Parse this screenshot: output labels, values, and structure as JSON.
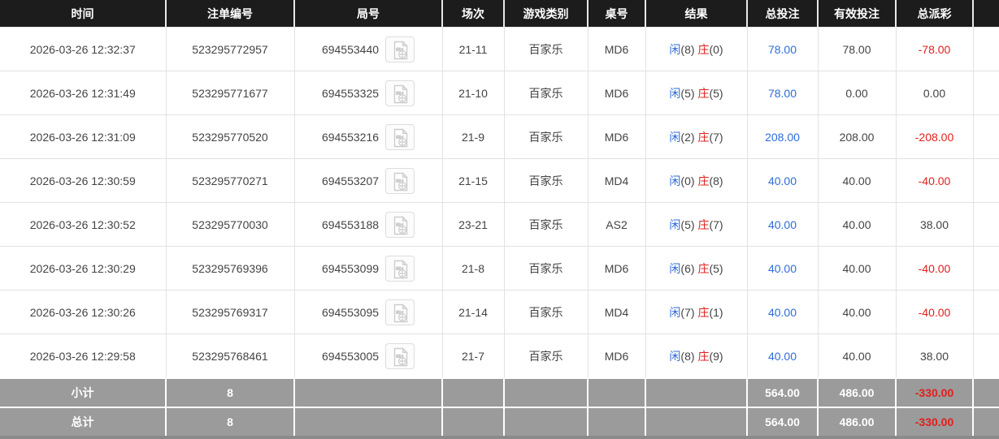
{
  "header": {
    "columns": [
      "时间",
      "注单编号",
      "局号",
      "场次",
      "游戏类别",
      "桌号",
      "结果",
      "总投注",
      "有效投注",
      "总派彩"
    ]
  },
  "icons": {
    "video_replay": "film-document-icon"
  },
  "rows": [
    {
      "time": "2026-03-26 12:32:37",
      "bet_id": "523295772957",
      "round_id": "694553440",
      "session": "21-11",
      "game_type": "百家乐",
      "table_no": "MD6",
      "result": {
        "player_label": "闲",
        "player_pts": "(8)",
        "banker_label": "庄",
        "banker_pts": "(0)"
      },
      "total_bet": "78.00",
      "valid_bet": "78.00",
      "payout": "-78.00"
    },
    {
      "time": "2026-03-26 12:31:49",
      "bet_id": "523295771677",
      "round_id": "694553325",
      "session": "21-10",
      "game_type": "百家乐",
      "table_no": "MD6",
      "result": {
        "player_label": "闲",
        "player_pts": "(5)",
        "banker_label": "庄",
        "banker_pts": "(5)"
      },
      "total_bet": "78.00",
      "valid_bet": "0.00",
      "payout": "0.00"
    },
    {
      "time": "2026-03-26 12:31:09",
      "bet_id": "523295770520",
      "round_id": "694553216",
      "session": "21-9",
      "game_type": "百家乐",
      "table_no": "MD6",
      "result": {
        "player_label": "闲",
        "player_pts": "(2)",
        "banker_label": "庄",
        "banker_pts": "(7)"
      },
      "total_bet": "208.00",
      "valid_bet": "208.00",
      "payout": "-208.00"
    },
    {
      "time": "2026-03-26 12:30:59",
      "bet_id": "523295770271",
      "round_id": "694553207",
      "session": "21-15",
      "game_type": "百家乐",
      "table_no": "MD4",
      "result": {
        "player_label": "闲",
        "player_pts": "(0)",
        "banker_label": "庄",
        "banker_pts": "(8)"
      },
      "total_bet": "40.00",
      "valid_bet": "40.00",
      "payout": "-40.00"
    },
    {
      "time": "2026-03-26 12:30:52",
      "bet_id": "523295770030",
      "round_id": "694553188",
      "session": "23-21",
      "game_type": "百家乐",
      "table_no": "AS2",
      "result": {
        "player_label": "闲",
        "player_pts": "(5)",
        "banker_label": "庄",
        "banker_pts": "(7)"
      },
      "total_bet": "40.00",
      "valid_bet": "40.00",
      "payout": "38.00"
    },
    {
      "time": "2026-03-26 12:30:29",
      "bet_id": "523295769396",
      "round_id": "694553099",
      "session": "21-8",
      "game_type": "百家乐",
      "table_no": "MD6",
      "result": {
        "player_label": "闲",
        "player_pts": "(6)",
        "banker_label": "庄",
        "banker_pts": "(5)"
      },
      "total_bet": "40.00",
      "valid_bet": "40.00",
      "payout": "-40.00"
    },
    {
      "time": "2026-03-26 12:30:26",
      "bet_id": "523295769317",
      "round_id": "694553095",
      "session": "21-14",
      "game_type": "百家乐",
      "table_no": "MD4",
      "result": {
        "player_label": "闲",
        "player_pts": "(7)",
        "banker_label": "庄",
        "banker_pts": "(1)"
      },
      "total_bet": "40.00",
      "valid_bet": "40.00",
      "payout": "-40.00"
    },
    {
      "time": "2026-03-26 12:29:58",
      "bet_id": "523295768461",
      "round_id": "694553005",
      "session": "21-7",
      "game_type": "百家乐",
      "table_no": "MD6",
      "result": {
        "player_label": "闲",
        "player_pts": "(8)",
        "banker_label": "庄",
        "banker_pts": "(9)"
      },
      "total_bet": "40.00",
      "valid_bet": "40.00",
      "payout": "38.00"
    }
  ],
  "footer": {
    "subtotal": {
      "label": "小计",
      "count": "8",
      "total_bet": "564.00",
      "valid_bet": "486.00",
      "payout": "-330.00"
    },
    "total": {
      "label": "总计",
      "count": "8",
      "total_bet": "564.00",
      "valid_bet": "486.00",
      "payout": "-330.00"
    }
  },
  "colors": {
    "header_bg": "#1c1c1c",
    "accent_blue": "#2e6cd9",
    "accent_red": "#e0201c",
    "footer_bg": "#9b9b9b",
    "footer_bottom": "#8b8b8b",
    "border": "#e2e2e2",
    "text": "#444444"
  }
}
